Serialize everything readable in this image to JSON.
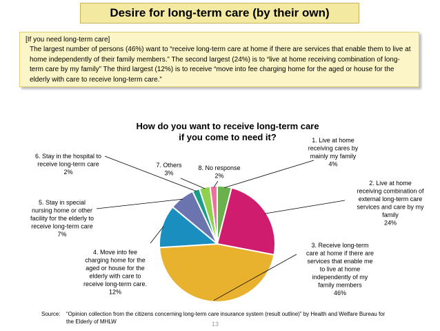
{
  "slide": {
    "title": "Desire for long-term care (by their own)",
    "summary_head": "[If you need long-term care]",
    "summary_body": "The largest number of persons (46%) want to “receive long-term care at home if there are services that enable them to live at home independently of their family members.” The second largest (24%) is to “live at home receiving combination of long-term care by my family” The third largest (12%) is to receive “move into fee charging home for the aged or house for the elderly with care to receive long-term care.”",
    "source_label": "Source:",
    "source_text": "“Opinion collection from the citizens concerning long-term care insurance system (result outline)” by Health and Welfare Bureau for the Elderly of MHLW",
    "page_number": "13"
  },
  "chart_data": {
    "type": "pie",
    "title_lines": [
      "How do you want to receive long-term care",
      "if you come to need it?"
    ],
    "start": "12 o'clock, clockwise",
    "slices": [
      {
        "label_lines": [
          "1. Live at home",
          "receiving cares by",
          "mainly  my family",
          "4%"
        ],
        "value": 4,
        "color": "#6ab04c"
      },
      {
        "label_lines": [
          "2. Live at home",
          "receiving combination of",
          "external long-term care",
          "services and care by my",
          "family",
          "24%"
        ],
        "value": 24,
        "color": "#d01c6e"
      },
      {
        "label_lines": [
          "3. Receive long-term",
          "care at home if there are",
          "services that enable me",
          "to live at home",
          "independently of my",
          "family members",
          "46%"
        ],
        "value": 46,
        "color": "#e8b12e"
      },
      {
        "label_lines": [
          "4. Move into fee",
          "charging home for the",
          "aged  or house for the",
          "elderly with care to",
          "receive long-term care.",
          "12%"
        ],
        "value": 12,
        "color": "#1a8fbf"
      },
      {
        "label_lines": [
          "5. Stay in special",
          "nursing home or other",
          "facility for the elderly to",
          "receive long-term care",
          "7%"
        ],
        "value": 7,
        "color": "#6b74ae"
      },
      {
        "label_lines": [
          "6. Stay in the hospital to",
          "receive long-term care",
          "2%"
        ],
        "value": 2,
        "color": "#1b9e8a"
      },
      {
        "label_lines": [
          "7. Others",
          "3%"
        ],
        "value": 3,
        "color": "#8fd14f"
      },
      {
        "label_lines": [
          "8. No response",
          "2%"
        ],
        "value": 2,
        "color": "#f06fa1"
      }
    ]
  }
}
